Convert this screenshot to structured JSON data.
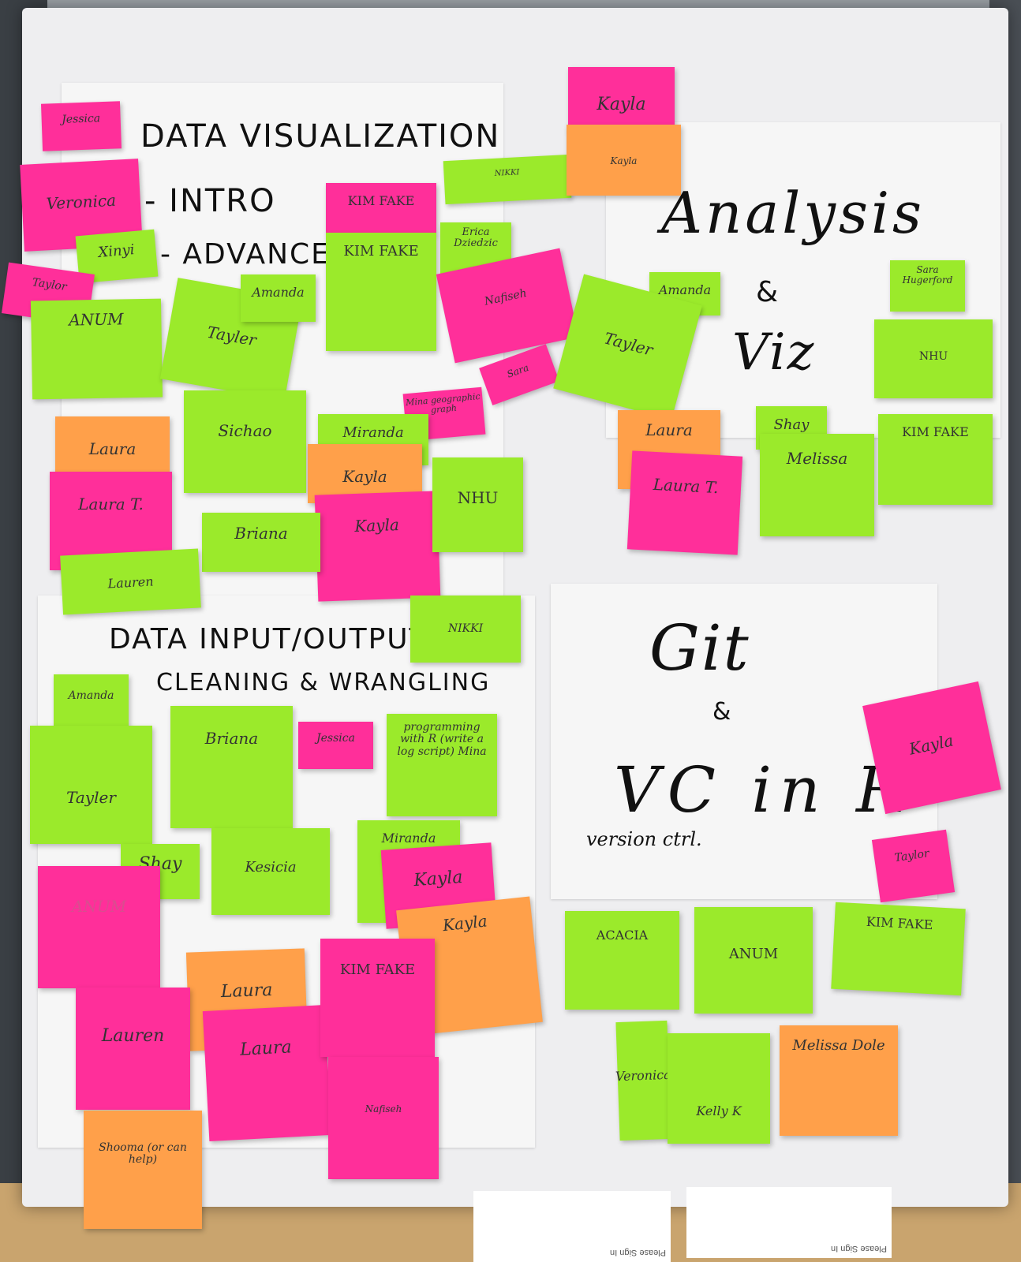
{
  "headings": {
    "data_viz": "DATA VISUALIZATION",
    "intro": "- INTRO",
    "advanced": "- ADVANCED",
    "analysis": "Analysis",
    "amp1": "&",
    "viz": "Viz",
    "data_io": "DATA INPUT/OUTPUT",
    "cleaning": "CLEANING & WRANGLING",
    "git": "Git",
    "amp2": "&",
    "vc_in_r": "VC in R",
    "version_ctrl": "version ctrl."
  },
  "notes": {
    "jessica1": "Jessica",
    "veronica1": "Veronica",
    "xinyi": "Xinyi",
    "taylor1": "Taylor",
    "anum1": "ANUM",
    "tayler1": "Tayler",
    "amanda1": "Amanda",
    "kimfake1": "KIM FAKE",
    "kimfake2": "KIM FAKE",
    "nikki1": "NIKKI",
    "erica": "Erica Dziedzic",
    "nafiseh1": "Nafiseh",
    "sara1": "Sara",
    "mina1": "Mina geographic graph",
    "kayla1": "Kayla",
    "kayla2": "Kayla",
    "amanda2": "Amanda",
    "sara2": "Sara Hugerford",
    "tayler2": "Tayler",
    "nhu1": "NHU",
    "laura1": "Laura",
    "laura2": "Laura T.",
    "sichao": "Sichao",
    "miranda1": "Miranda",
    "kayla3": "Kayla",
    "kayla4": "Kayla",
    "nhu2": "NHU",
    "briana1": "Briana",
    "lauren1": "Lauren",
    "laura3": "Laura",
    "laura4": "Laura",
    "shay1": "Shay",
    "melissa1": "Melissa",
    "kimfake3": "KIM FAKE",
    "nikki2": "NIKKI",
    "amanda3": "Amanda",
    "tayler3": "Tayler",
    "briana2": "Briana",
    "jessica2": "Jessica",
    "programming": "programming with R (write a log script) Mina",
    "shay2": "Shay",
    "kesicia": "Kesicia",
    "miranda2": "Miranda",
    "kayla5": "Kayla",
    "kayla6": "Kayla",
    "anum2": "ANUM",
    "laura5": "Laura",
    "laura6": "Laura",
    "kimfake4": "KIM FAKE",
    "lauren2": "Lauren",
    "shooma": "Shooma (or can help)",
    "nafiseh2": "Nafiseh",
    "kayla7": "Kayla",
    "taylor2": "Taylor",
    "acacia": "ACACIA",
    "anum3": "ANUM",
    "kimfake5": "KIM FAKE",
    "veronica2": "Veronica",
    "kellyk": "Kelly K",
    "melissa2": "Melissa Dole"
  },
  "papers": {
    "sheet1": "Please Sign In",
    "sheet2": "Please Sign In"
  }
}
